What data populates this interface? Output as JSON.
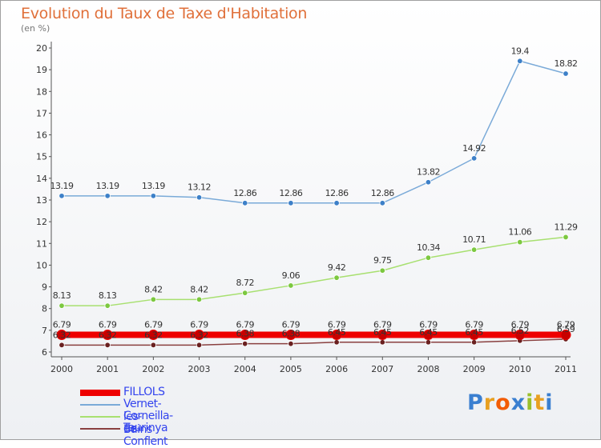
{
  "header": {
    "title": "Evolution du Taux de Taxe d'Habitation",
    "subtitle": "(en %)"
  },
  "logo": {
    "text": "Proxiti",
    "colors": [
      "#3a7fd0",
      "#e8a020",
      "#f25c05",
      "#3a7fd0",
      "#9ac02a",
      "#e8a020",
      "#3a7fd0"
    ]
  },
  "chart_data": {
    "type": "line",
    "title": "Evolution du Taux de Taxe d'Habitation",
    "subtitle": "(en %)",
    "x": [
      "2000",
      "2001",
      "2002",
      "2003",
      "2004",
      "2005",
      "2006",
      "2007",
      "2008",
      "2009",
      "2010",
      "2011"
    ],
    "ylim": [
      6,
      20
    ],
    "yticks": [
      6,
      7,
      8,
      9,
      10,
      11,
      12,
      13,
      14,
      15,
      16,
      17,
      18,
      19,
      20
    ],
    "grid": false,
    "legend": "bottom-left",
    "series": [
      {
        "name": "FILLOLS",
        "color": "#ee0000",
        "width": 8,
        "values": [
          6.79,
          6.79,
          6.79,
          6.79,
          6.79,
          6.79,
          6.79,
          6.79,
          6.79,
          6.79,
          6.79,
          6.79
        ],
        "labels": [
          "6.79",
          "6.79",
          "6.79",
          "6.79",
          "6.79",
          "6.79",
          "6.79",
          "6.79",
          "6.79",
          "6.79",
          "6.79",
          "6.79"
        ]
      },
      {
        "name": "Vernet-les-Bains",
        "color": "#7aaad8",
        "marker": "#3d80c8",
        "values": [
          13.19,
          13.19,
          13.19,
          13.12,
          12.86,
          12.86,
          12.86,
          12.86,
          13.82,
          14.92,
          19.4,
          18.82
        ],
        "labels": [
          "13.19",
          "13.19",
          "13.19",
          "13.12",
          "12.86",
          "12.86",
          "12.86",
          "12.86",
          "13.82",
          "14.92",
          "19.4",
          "18.82"
        ]
      },
      {
        "name": "Corneilla-de-Conflent",
        "color": "#a8e070",
        "marker": "#7cc840",
        "values": [
          8.13,
          8.13,
          8.42,
          8.42,
          8.72,
          9.06,
          9.42,
          9.75,
          10.34,
          10.71,
          11.06,
          11.29
        ],
        "labels": [
          "8.13",
          "8.13",
          "8.42",
          "8.42",
          "8.72",
          "9.06",
          "9.42",
          "9.75",
          "10.34",
          "10.71",
          "11.06",
          "11.29"
        ]
      },
      {
        "name": "Taurinya",
        "color": "#8a4040",
        "marker": "#6a2020",
        "values": [
          6.32,
          6.32,
          6.32,
          6.32,
          6.38,
          6.38,
          6.45,
          6.45,
          6.45,
          6.45,
          6.52,
          6.59
        ],
        "labels": [
          "6.32",
          "6.32",
          "6.32",
          "6.32",
          "6.38",
          "6.38",
          "6.45",
          "6.45",
          "6.45",
          "6.45",
          "6.52",
          "6.59"
        ]
      }
    ]
  }
}
